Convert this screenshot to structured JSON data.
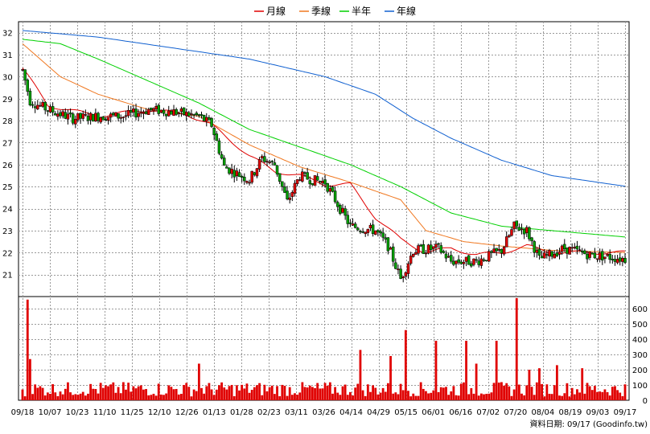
{
  "chart_data": {
    "type": "candlestick",
    "legend": [
      {
        "label": "月線",
        "color": "#e00000"
      },
      {
        "label": "季線",
        "color": "#f07820"
      },
      {
        "label": "半年",
        "color": "#00d000"
      },
      {
        "label": "年線",
        "color": "#1060d0"
      }
    ],
    "price_axis": {
      "ticks": [
        "32",
        "31",
        "30",
        "29",
        "28",
        "27",
        "26",
        "25",
        "24",
        "23",
        "22",
        "21"
      ],
      "ylim": [
        20,
        32.5
      ]
    },
    "volume_axis": {
      "ticks": [
        "600",
        "500",
        "400",
        "300",
        "200",
        "100",
        "0"
      ],
      "ylim": [
        0,
        680
      ]
    },
    "x_ticks": [
      "09/18",
      "10/07",
      "10/23",
      "11/10",
      "11/25",
      "12/10",
      "12/26",
      "01/13",
      "01/28",
      "02/23",
      "03/11",
      "03/26",
      "04/14",
      "04/29",
      "05/15",
      "06/01",
      "06/16",
      "07/02",
      "07/20",
      "08/04",
      "08/19",
      "09/03",
      "09/17"
    ],
    "source_label": "資料日期: 09/17  (Goodinfo.tw)",
    "sessions": 240,
    "ma_lines": {
      "year": {
        "color": "#1060d0",
        "points": [
          [
            0,
            32.1
          ],
          [
            30,
            31.8
          ],
          [
            60,
            31.3
          ],
          [
            90,
            30.8
          ],
          [
            120,
            30.0
          ],
          [
            140,
            29.2
          ],
          [
            155,
            28.1
          ],
          [
            170,
            27.2
          ],
          [
            190,
            26.2
          ],
          [
            210,
            25.5
          ],
          [
            240,
            25.0
          ]
        ]
      },
      "half": {
        "color": "#00d000",
        "points": [
          [
            0,
            31.7
          ],
          [
            15,
            31.5
          ],
          [
            30,
            30.8
          ],
          [
            50,
            29.8
          ],
          [
            70,
            28.8
          ],
          [
            90,
            27.6
          ],
          [
            110,
            26.8
          ],
          [
            130,
            26.0
          ],
          [
            150,
            25.0
          ],
          [
            170,
            23.8
          ],
          [
            190,
            23.2
          ],
          [
            210,
            23.0
          ],
          [
            240,
            22.7
          ]
        ]
      },
      "season": {
        "color": "#f07820",
        "points": [
          [
            0,
            31.5
          ],
          [
            15,
            30.0
          ],
          [
            30,
            29.2
          ],
          [
            50,
            28.5
          ],
          [
            70,
            28.2
          ],
          [
            90,
            26.9
          ],
          [
            110,
            25.9
          ],
          [
            130,
            25.2
          ],
          [
            150,
            24.4
          ],
          [
            160,
            23.0
          ],
          [
            175,
            22.5
          ],
          [
            190,
            22.3
          ],
          [
            210,
            22.1
          ],
          [
            240,
            22.0
          ]
        ]
      },
      "month": {
        "color": "#e00000",
        "points": [
          [
            0,
            30.4
          ],
          [
            10,
            28.7
          ],
          [
            30,
            28.2
          ],
          [
            50,
            28.5
          ],
          [
            65,
            28.3
          ],
          [
            75,
            27.8
          ],
          [
            90,
            26.4
          ],
          [
            100,
            25.7
          ],
          [
            110,
            25.5
          ],
          [
            120,
            25.1
          ],
          [
            130,
            25.1
          ],
          [
            140,
            23.6
          ],
          [
            150,
            22.6
          ],
          [
            160,
            22.0
          ],
          [
            170,
            22.2
          ],
          [
            180,
            21.9
          ],
          [
            190,
            22.0
          ],
          [
            200,
            22.3
          ],
          [
            210,
            22.0
          ],
          [
            240,
            22.0
          ]
        ]
      }
    },
    "price_anchors": [
      [
        0,
        30.3
      ],
      [
        3,
        28.9
      ],
      [
        10,
        28.5
      ],
      [
        20,
        28.1
      ],
      [
        30,
        28.2
      ],
      [
        40,
        28.2
      ],
      [
        50,
        28.5
      ],
      [
        60,
        28.4
      ],
      [
        70,
        28.2
      ],
      [
        75,
        27.8
      ],
      [
        80,
        25.9
      ],
      [
        90,
        25.3
      ],
      [
        95,
        26.3
      ],
      [
        100,
        26.0
      ],
      [
        105,
        24.3
      ],
      [
        110,
        25.5
      ],
      [
        115,
        25.3
      ],
      [
        120,
        25.2
      ],
      [
        130,
        23.2
      ],
      [
        140,
        23.0
      ],
      [
        145,
        22.3
      ],
      [
        150,
        20.8
      ],
      [
        155,
        22.1
      ],
      [
        165,
        22.2
      ],
      [
        170,
        21.6
      ],
      [
        180,
        21.6
      ],
      [
        190,
        22.1
      ],
      [
        195,
        23.2
      ],
      [
        200,
        23.0
      ],
      [
        205,
        21.7
      ],
      [
        215,
        22.2
      ],
      [
        225,
        21.9
      ],
      [
        240,
        21.7
      ]
    ],
    "volume_spikes": [
      [
        2,
        660
      ],
      [
        3,
        270
      ],
      [
        70,
        240
      ],
      [
        134,
        330
      ],
      [
        146,
        290
      ],
      [
        152,
        460
      ],
      [
        164,
        390
      ],
      [
        176,
        390
      ],
      [
        180,
        240
      ],
      [
        188,
        390
      ],
      [
        196,
        670
      ],
      [
        201,
        200
      ],
      [
        205,
        210
      ],
      [
        212,
        230
      ],
      [
        222,
        210
      ]
    ]
  }
}
